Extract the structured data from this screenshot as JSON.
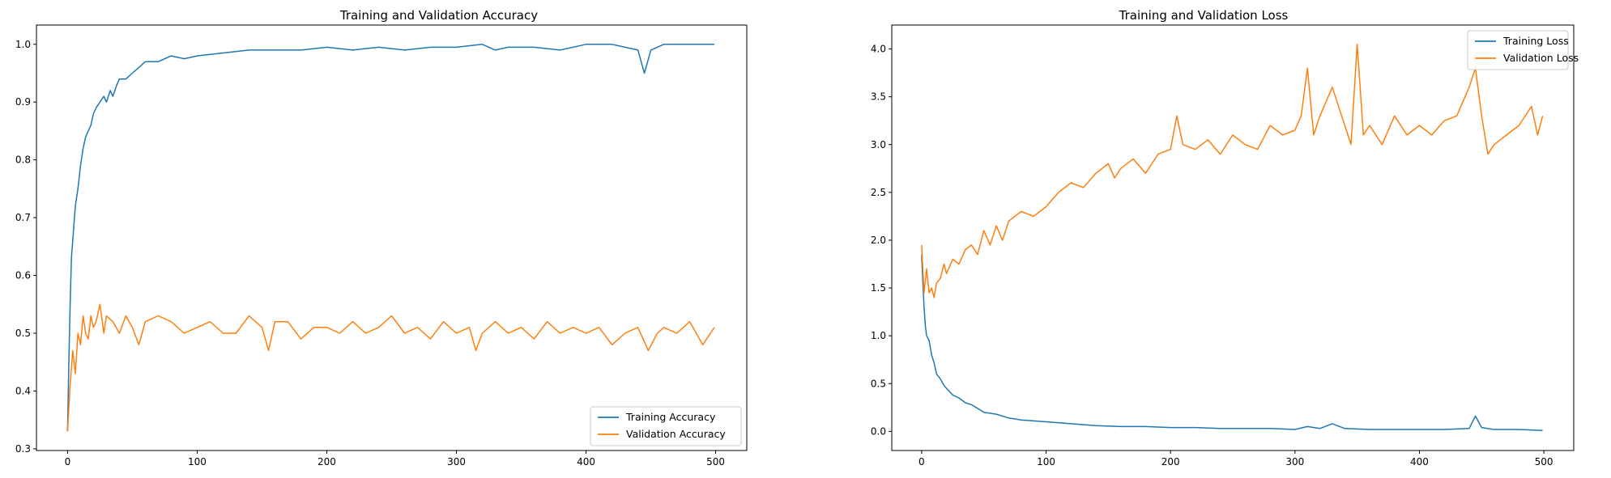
{
  "chart_data": [
    {
      "type": "line",
      "title": "Training and Validation Accuracy",
      "xlabel": "",
      "ylabel": "",
      "xlim": [
        -24,
        524
      ],
      "ylim": [
        0.297,
        1.0333
      ],
      "xticks": [
        0,
        100,
        200,
        300,
        400,
        500
      ],
      "xtick_labels": [
        "0",
        "100",
        "200",
        "300",
        "400",
        "500"
      ],
      "yticks": [
        0.3,
        0.4,
        0.5,
        0.6,
        0.7,
        0.8,
        0.9,
        1.0
      ],
      "ytick_labels": [
        "0.3",
        "0.4",
        "0.5",
        "0.6",
        "0.7",
        "0.8",
        "0.9",
        "1.0"
      ],
      "grid": false,
      "legend_position": "lower-right",
      "series": [
        {
          "name": "Training Accuracy",
          "color": "#1f77b4",
          "x": [
            0,
            1,
            2,
            3,
            4,
            5,
            6,
            8,
            10,
            12,
            14,
            16,
            18,
            20,
            22,
            25,
            28,
            30,
            33,
            35,
            38,
            40,
            45,
            50,
            55,
            60,
            70,
            80,
            90,
            100,
            120,
            140,
            160,
            180,
            200,
            220,
            240,
            260,
            280,
            300,
            320,
            330,
            340,
            360,
            380,
            400,
            420,
            440,
            445,
            450,
            460,
            480,
            499
          ],
          "y": [
            0.33,
            0.45,
            0.55,
            0.63,
            0.66,
            0.69,
            0.72,
            0.75,
            0.79,
            0.82,
            0.84,
            0.85,
            0.86,
            0.88,
            0.89,
            0.9,
            0.91,
            0.9,
            0.92,
            0.91,
            0.93,
            0.94,
            0.94,
            0.95,
            0.96,
            0.97,
            0.97,
            0.98,
            0.975,
            0.98,
            0.985,
            0.99,
            0.99,
            0.99,
            0.995,
            0.99,
            0.995,
            0.99,
            0.995,
            0.995,
            1.0,
            0.99,
            0.995,
            0.995,
            0.99,
            1.0,
            1.0,
            0.99,
            0.95,
            0.99,
            1.0,
            1.0,
            1.0
          ]
        },
        {
          "name": "Validation Accuracy",
          "color": "#ff7f0e",
          "x": [
            0,
            2,
            4,
            6,
            8,
            10,
            12,
            14,
            16,
            18,
            20,
            22,
            25,
            28,
            30,
            35,
            40,
            45,
            50,
            55,
            60,
            70,
            80,
            90,
            100,
            110,
            120,
            130,
            140,
            150,
            155,
            160,
            170,
            180,
            190,
            200,
            210,
            220,
            230,
            240,
            250,
            260,
            270,
            280,
            290,
            300,
            310,
            315,
            320,
            330,
            340,
            350,
            360,
            370,
            380,
            390,
            400,
            410,
            420,
            430,
            440,
            448,
            455,
            460,
            470,
            480,
            490,
            499
          ],
          "y": [
            0.33,
            0.41,
            0.47,
            0.43,
            0.5,
            0.48,
            0.53,
            0.5,
            0.49,
            0.53,
            0.51,
            0.52,
            0.55,
            0.5,
            0.53,
            0.52,
            0.5,
            0.53,
            0.51,
            0.48,
            0.52,
            0.53,
            0.52,
            0.5,
            0.51,
            0.52,
            0.5,
            0.5,
            0.53,
            0.51,
            0.47,
            0.52,
            0.52,
            0.49,
            0.51,
            0.51,
            0.5,
            0.52,
            0.5,
            0.51,
            0.53,
            0.5,
            0.51,
            0.49,
            0.52,
            0.5,
            0.51,
            0.47,
            0.5,
            0.52,
            0.5,
            0.51,
            0.49,
            0.52,
            0.5,
            0.51,
            0.5,
            0.51,
            0.48,
            0.5,
            0.51,
            0.47,
            0.5,
            0.51,
            0.5,
            0.52,
            0.48,
            0.51
          ]
        }
      ]
    },
    {
      "type": "line",
      "title": "Training and Validation Loss",
      "xlabel": "",
      "ylabel": "",
      "xlim": [
        -24,
        524
      ],
      "ylim": [
        -0.2,
        4.25
      ],
      "xticks": [
        0,
        100,
        200,
        300,
        400,
        500
      ],
      "xtick_labels": [
        "0",
        "100",
        "200",
        "300",
        "400",
        "500"
      ],
      "yticks": [
        0.0,
        0.5,
        1.0,
        1.5,
        2.0,
        2.5,
        3.0,
        3.5,
        4.0
      ],
      "ytick_labels": [
        "0.0",
        "0.5",
        "1.0",
        "1.5",
        "2.0",
        "2.5",
        "3.0",
        "3.5",
        "4.0"
      ],
      "grid": false,
      "legend_position": "top-right",
      "series": [
        {
          "name": "Training Loss",
          "color": "#1f77b4",
          "x": [
            0,
            1,
            2,
            3,
            4,
            6,
            8,
            10,
            12,
            15,
            18,
            20,
            25,
            30,
            35,
            40,
            45,
            50,
            60,
            70,
            80,
            90,
            100,
            120,
            140,
            160,
            180,
            200,
            220,
            240,
            260,
            280,
            300,
            310,
            320,
            330,
            340,
            360,
            380,
            400,
            420,
            440,
            445,
            450,
            460,
            480,
            499
          ],
          "y": [
            1.85,
            1.55,
            1.3,
            1.1,
            1.0,
            0.95,
            0.8,
            0.72,
            0.6,
            0.55,
            0.48,
            0.45,
            0.38,
            0.35,
            0.3,
            0.28,
            0.24,
            0.2,
            0.18,
            0.14,
            0.12,
            0.11,
            0.1,
            0.08,
            0.06,
            0.05,
            0.05,
            0.04,
            0.04,
            0.03,
            0.03,
            0.03,
            0.02,
            0.05,
            0.03,
            0.08,
            0.03,
            0.02,
            0.02,
            0.02,
            0.02,
            0.03,
            0.16,
            0.04,
            0.02,
            0.02,
            0.01
          ]
        },
        {
          "name": "Validation Loss",
          "color": "#ff7f0e",
          "x": [
            0,
            2,
            4,
            6,
            8,
            10,
            12,
            15,
            18,
            20,
            25,
            30,
            35,
            40,
            45,
            50,
            55,
            60,
            65,
            70,
            80,
            90,
            100,
            110,
            120,
            130,
            140,
            150,
            155,
            160,
            170,
            180,
            190,
            200,
            205,
            210,
            220,
            230,
            240,
            250,
            260,
            270,
            280,
            290,
            300,
            305,
            310,
            315,
            320,
            330,
            340,
            345,
            350,
            355,
            360,
            370,
            380,
            390,
            400,
            410,
            420,
            430,
            440,
            445,
            450,
            455,
            460,
            470,
            480,
            490,
            495,
            499
          ],
          "y": [
            1.95,
            1.45,
            1.7,
            1.45,
            1.5,
            1.4,
            1.55,
            1.6,
            1.75,
            1.65,
            1.8,
            1.75,
            1.9,
            1.95,
            1.85,
            2.1,
            1.95,
            2.15,
            2.0,
            2.2,
            2.3,
            2.25,
            2.35,
            2.5,
            2.6,
            2.55,
            2.7,
            2.8,
            2.65,
            2.75,
            2.85,
            2.7,
            2.9,
            2.95,
            3.3,
            3.0,
            2.95,
            3.05,
            2.9,
            3.1,
            3.0,
            2.95,
            3.2,
            3.1,
            3.15,
            3.3,
            3.8,
            3.1,
            3.3,
            3.6,
            3.2,
            3.0,
            4.05,
            3.1,
            3.2,
            3.0,
            3.3,
            3.1,
            3.2,
            3.1,
            3.25,
            3.3,
            3.6,
            3.8,
            3.3,
            2.9,
            3.0,
            3.1,
            3.2,
            3.4,
            3.1,
            3.3
          ]
        }
      ]
    }
  ]
}
